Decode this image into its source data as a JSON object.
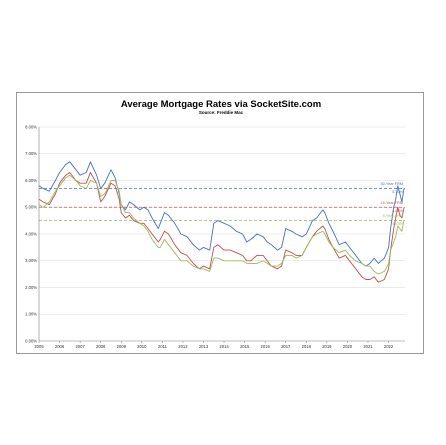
{
  "chart_data": {
    "type": "line",
    "title": "Average Mortgage Rates via SocketSite.com",
    "subtitle": "Source: Freddie Mac",
    "xlabel": "",
    "ylabel": "",
    "xlim": [
      2005.0,
      2022.8
    ],
    "ylim": [
      0,
      8
    ],
    "grid": true,
    "x_ticks": [
      "2005",
      "2006",
      "2007",
      "2008",
      "2009",
      "2010",
      "2011",
      "2012",
      "2013",
      "2014",
      "2015",
      "2016",
      "2017",
      "2018",
      "2019",
      "2020",
      "2021",
      "2022"
    ],
    "y_ticks": [
      "0.00%",
      "1.00%",
      "2.00%",
      "3.00%",
      "4.00%",
      "5.00%",
      "6.00%",
      "7.00%",
      "8.00%"
    ],
    "colors": {
      "thirty": "#4472c4",
      "fifteen": "#c0504d",
      "arm": "#9bbb59",
      "grid": "#d9d9d9",
      "axis": "#7f7f7f"
    },
    "series": [
      {
        "key": "thirty",
        "x": [
          2005.0,
          2005.2,
          2005.5,
          2005.8,
          2006.0,
          2006.3,
          2006.5,
          2006.8,
          2007.0,
          2007.3,
          2007.5,
          2007.8,
          2008.0,
          2008.2,
          2008.5,
          2008.7,
          2008.9,
          2009.0,
          2009.2,
          2009.4,
          2009.6,
          2009.9,
          2010.1,
          2010.3,
          2010.5,
          2010.8,
          2010.9,
          2011.1,
          2011.3,
          2011.6,
          2011.9,
          2012.2,
          2012.5,
          2012.8,
          2013.0,
          2013.3,
          2013.5,
          2013.7,
          2014.0,
          2014.3,
          2014.6,
          2014.9,
          2015.1,
          2015.3,
          2015.6,
          2015.9,
          2016.1,
          2016.3,
          2016.6,
          2016.8,
          2017.0,
          2017.3,
          2017.5,
          2017.8,
          2018.0,
          2018.3,
          2018.5,
          2018.8,
          2018.9,
          2019.1,
          2019.3,
          2019.6,
          2019.9,
          2020.1,
          2020.4,
          2020.7,
          2020.9,
          2021.1,
          2021.3,
          2021.5,
          2021.8,
          2022.0,
          2022.1,
          2022.25,
          2022.35,
          2022.45,
          2022.55,
          2022.65,
          2022.75
        ],
        "y": [
          5.8,
          5.7,
          5.6,
          6.0,
          6.3,
          6.6,
          6.7,
          6.4,
          6.2,
          6.3,
          6.7,
          6.2,
          5.7,
          5.9,
          6.4,
          6.1,
          5.5,
          5.1,
          4.9,
          5.2,
          5.1,
          4.9,
          5.0,
          4.9,
          4.6,
          4.2,
          4.4,
          4.8,
          4.7,
          4.4,
          4.0,
          3.9,
          3.6,
          3.4,
          3.5,
          3.4,
          4.4,
          4.5,
          4.4,
          4.3,
          4.1,
          4.0,
          3.7,
          3.8,
          4.0,
          3.9,
          3.7,
          3.6,
          3.4,
          3.5,
          4.2,
          4.1,
          4.0,
          3.9,
          4.0,
          4.5,
          4.6,
          4.9,
          4.8,
          4.4,
          4.1,
          3.6,
          3.7,
          3.5,
          3.2,
          2.9,
          2.8,
          2.9,
          3.1,
          2.9,
          3.1,
          3.5,
          4.2,
          5.0,
          5.3,
          5.8,
          5.5,
          5.2,
          5.7
        ]
      },
      {
        "key": "fifteen",
        "x": [
          2005.0,
          2005.2,
          2005.5,
          2005.8,
          2006.0,
          2006.3,
          2006.5,
          2006.8,
          2007.0,
          2007.3,
          2007.5,
          2007.8,
          2008.0,
          2008.2,
          2008.5,
          2008.7,
          2008.9,
          2009.0,
          2009.2,
          2009.4,
          2009.6,
          2009.9,
          2010.1,
          2010.3,
          2010.5,
          2010.8,
          2010.9,
          2011.1,
          2011.3,
          2011.6,
          2011.9,
          2012.2,
          2012.5,
          2012.8,
          2013.0,
          2013.3,
          2013.5,
          2013.7,
          2014.0,
          2014.3,
          2014.6,
          2014.9,
          2015.1,
          2015.3,
          2015.6,
          2015.9,
          2016.1,
          2016.3,
          2016.6,
          2016.8,
          2017.0,
          2017.3,
          2017.5,
          2017.8,
          2018.0,
          2018.3,
          2018.5,
          2018.8,
          2018.9,
          2019.1,
          2019.3,
          2019.6,
          2019.9,
          2020.1,
          2020.4,
          2020.7,
          2020.9,
          2021.1,
          2021.3,
          2021.5,
          2021.8,
          2022.0,
          2022.1,
          2022.25,
          2022.35,
          2022.45,
          2022.55,
          2022.65,
          2022.75
        ],
        "y": [
          5.3,
          5.2,
          5.1,
          5.5,
          5.9,
          6.2,
          6.3,
          6.0,
          5.9,
          5.9,
          6.3,
          5.9,
          5.2,
          5.4,
          5.9,
          5.8,
          5.3,
          4.8,
          4.6,
          4.7,
          4.5,
          4.4,
          4.4,
          4.2,
          4.0,
          3.7,
          3.8,
          4.1,
          4.0,
          3.6,
          3.3,
          3.2,
          2.9,
          2.7,
          2.8,
          2.7,
          3.5,
          3.6,
          3.4,
          3.4,
          3.3,
          3.2,
          3.0,
          3.0,
          3.2,
          3.2,
          3.0,
          2.8,
          2.7,
          2.8,
          3.4,
          3.3,
          3.2,
          3.2,
          3.5,
          3.9,
          4.1,
          4.3,
          4.2,
          3.8,
          3.5,
          3.1,
          3.2,
          3.0,
          2.7,
          2.4,
          2.3,
          2.3,
          2.4,
          2.2,
          2.3,
          2.7,
          3.4,
          4.2,
          4.6,
          5.0,
          4.7,
          4.6,
          4.98
        ]
      },
      {
        "key": "arm",
        "x": [
          2005.0,
          2005.2,
          2005.5,
          2005.8,
          2006.0,
          2006.3,
          2006.5,
          2006.8,
          2007.0,
          2007.3,
          2007.5,
          2007.8,
          2008.0,
          2008.2,
          2008.5,
          2008.7,
          2008.9,
          2009.0,
          2009.2,
          2009.4,
          2009.6,
          2009.9,
          2010.1,
          2010.3,
          2010.5,
          2010.8,
          2010.9,
          2011.1,
          2011.3,
          2011.6,
          2011.9,
          2012.2,
          2012.5,
          2012.8,
          2013.0,
          2013.3,
          2013.5,
          2013.7,
          2014.0,
          2014.3,
          2014.6,
          2014.9,
          2015.1,
          2015.3,
          2015.6,
          2015.9,
          2016.1,
          2016.3,
          2016.6,
          2016.8,
          2017.0,
          2017.3,
          2017.5,
          2017.8,
          2018.0,
          2018.3,
          2018.5,
          2018.8,
          2018.9,
          2019.1,
          2019.3,
          2019.6,
          2019.9,
          2020.1,
          2020.4,
          2020.7,
          2020.9,
          2021.1,
          2021.3,
          2021.5,
          2021.8,
          2022.0,
          2022.1,
          2022.25,
          2022.35,
          2022.45,
          2022.55,
          2022.65,
          2022.75
        ],
        "y": [
          5.1,
          5.0,
          5.2,
          5.6,
          5.8,
          6.1,
          6.2,
          6.0,
          5.8,
          5.7,
          6.0,
          5.9,
          5.4,
          5.5,
          6.0,
          6.0,
          5.6,
          5.1,
          4.8,
          4.8,
          4.6,
          4.4,
          4.3,
          4.1,
          3.8,
          3.5,
          3.5,
          3.8,
          3.6,
          3.3,
          3.0,
          3.0,
          2.8,
          2.7,
          2.7,
          2.6,
          3.1,
          3.1,
          3.0,
          3.0,
          3.0,
          3.0,
          2.9,
          2.9,
          2.9,
          3.0,
          2.9,
          2.8,
          2.8,
          2.9,
          3.2,
          3.2,
          3.1,
          3.2,
          3.5,
          3.9,
          4.0,
          4.1,
          4.0,
          3.7,
          3.5,
          3.3,
          3.4,
          3.2,
          3.0,
          2.9,
          2.8,
          2.8,
          2.6,
          2.5,
          2.6,
          2.9,
          3.4,
          3.7,
          3.9,
          4.3,
          4.2,
          4.1,
          4.53
        ]
      }
    ],
    "reference_lines": [
      {
        "key": "thirty",
        "y": 5.7
      },
      {
        "key": "fifteen",
        "y": 5.0
      },
      {
        "key": "arm",
        "y": 4.5
      }
    ],
    "annotations": [
      {
        "key": "thirty",
        "label": "30-Year FRM",
        "value": "5.70%"
      },
      {
        "key": "fifteen",
        "label": "15-Year FRM",
        "value": "4.98%"
      },
      {
        "key": "arm",
        "label": "5-Year ARM",
        "value": "4.53%"
      }
    ]
  }
}
